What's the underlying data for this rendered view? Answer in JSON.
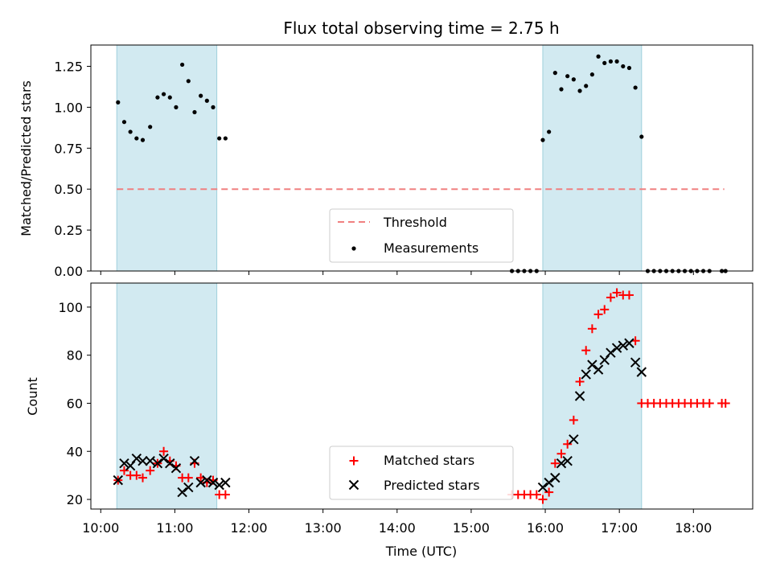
{
  "colors": {
    "shade": "#add8e6",
    "shade_edge": "#9fd0dc",
    "threshold": "#f08080",
    "matched": "#ff0000",
    "predicted": "#000000",
    "measurement": "#000000"
  },
  "chart_data": [
    {
      "type": "scatter",
      "title": "Flux total observing time = 2.75 h",
      "xlabel": "",
      "ylabel": "Matched/Predicted stars",
      "xlim": [
        "09:52",
        "18:48"
      ],
      "ylim": [
        0,
        1.38
      ],
      "yticks": [
        "0.00",
        "0.25",
        "0.50",
        "0.75",
        "1.00",
        "1.25"
      ],
      "shaded_intervals": [
        [
          "10:13",
          "11:34"
        ],
        [
          "15:58",
          "17:18"
        ]
      ],
      "threshold": {
        "name": "Threshold",
        "value": 0.5,
        "x_range": [
          "10:13",
          "18:25"
        ]
      },
      "legend": {
        "location": "lower center",
        "entries": [
          "Threshold",
          "Measurements"
        ]
      },
      "series": [
        {
          "name": "Measurements",
          "x": [
            "10:14",
            "10:19",
            "10:24",
            "10:29",
            "10:34",
            "10:40",
            "10:46",
            "10:51",
            "10:56",
            "11:01",
            "11:06",
            "11:11",
            "11:16",
            "11:21",
            "11:26",
            "11:31",
            "11:36",
            "11:41",
            "15:33",
            "15:38",
            "15:43",
            "15:48",
            "15:53",
            "15:58",
            "16:03",
            "16:08",
            "16:13",
            "16:18",
            "16:23",
            "16:28",
            "16:33",
            "16:38",
            "16:43",
            "16:48",
            "16:53",
            "16:58",
            "17:03",
            "17:08",
            "17:13",
            "17:18",
            "17:23",
            "17:28",
            "17:33",
            "17:38",
            "17:43",
            "17:48",
            "17:53",
            "17:58",
            "18:03",
            "18:08",
            "18:13",
            "18:23",
            "18:26"
          ],
          "y": [
            1.03,
            0.91,
            0.85,
            0.81,
            0.8,
            0.88,
            1.06,
            1.08,
            1.06,
            1.0,
            1.26,
            1.16,
            0.97,
            1.07,
            1.04,
            1.0,
            0.81,
            0.81,
            0.0,
            0.0,
            0.0,
            0.0,
            0.0,
            0.8,
            0.85,
            1.21,
            1.11,
            1.19,
            1.17,
            1.1,
            1.13,
            1.2,
            1.31,
            1.27,
            1.28,
            1.28,
            1.25,
            1.24,
            1.12,
            0.82,
            0.0,
            0.0,
            0.0,
            0.0,
            0.0,
            0.0,
            0.0,
            0.0,
            0.0,
            0.0,
            0.0,
            0.0,
            0.0
          ]
        }
      ]
    },
    {
      "type": "scatter",
      "title": "",
      "xlabel": "Time (UTC)",
      "ylabel": "Count",
      "xlim": [
        "09:52",
        "18:48"
      ],
      "ylim": [
        16,
        110
      ],
      "yticks": [
        "20",
        "40",
        "60",
        "80",
        "100"
      ],
      "xticks": [
        "10:00",
        "11:00",
        "12:00",
        "13:00",
        "14:00",
        "15:00",
        "16:00",
        "17:00",
        "18:00"
      ],
      "shaded_intervals": [
        [
          "10:13",
          "11:34"
        ],
        [
          "15:58",
          "17:18"
        ]
      ],
      "legend": {
        "location": "lower center",
        "entries": [
          "Matched stars",
          "Predicted stars"
        ]
      },
      "series": [
        {
          "name": "Matched stars",
          "marker": "+",
          "x": [
            "10:14",
            "10:19",
            "10:24",
            "10:29",
            "10:34",
            "10:40",
            "10:46",
            "10:51",
            "10:56",
            "11:01",
            "11:06",
            "11:11",
            "11:16",
            "11:21",
            "11:26",
            "11:31",
            "11:36",
            "11:41",
            "15:33",
            "15:38",
            "15:43",
            "15:48",
            "15:53",
            "15:58",
            "16:03",
            "16:08",
            "16:13",
            "16:18",
            "16:23",
            "16:28",
            "16:33",
            "16:38",
            "16:43",
            "16:48",
            "16:53",
            "16:58",
            "17:03",
            "17:08",
            "17:13",
            "17:18",
            "17:23",
            "17:28",
            "17:33",
            "17:38",
            "17:43",
            "17:48",
            "17:53",
            "17:58",
            "18:03",
            "18:08",
            "18:13",
            "18:23",
            "18:26"
          ],
          "y": [
            28,
            32,
            30,
            30,
            29,
            32,
            35,
            40,
            36,
            34,
            29,
            29,
            35,
            29,
            27,
            28,
            22,
            22,
            22,
            22,
            22,
            22,
            22,
            20,
            23,
            35,
            39,
            43,
            53,
            69,
            82,
            91,
            97,
            99,
            104,
            106,
            105,
            105,
            86,
            60,
            60,
            60,
            60,
            60,
            60,
            60,
            60,
            60,
            60,
            60,
            60,
            60,
            60
          ]
        },
        {
          "name": "Predicted stars",
          "marker": "x",
          "x": [
            "10:14",
            "10:19",
            "10:24",
            "10:29",
            "10:34",
            "10:40",
            "10:46",
            "10:51",
            "10:56",
            "11:01",
            "11:06",
            "11:11",
            "11:16",
            "11:21",
            "11:26",
            "11:31",
            "11:36",
            "11:41",
            "15:58",
            "16:03",
            "16:08",
            "16:13",
            "16:18",
            "16:23",
            "16:28",
            "16:33",
            "16:38",
            "16:43",
            "16:48",
            "16:53",
            "16:58",
            "17:03",
            "17:08",
            "17:13",
            "17:18"
          ],
          "y": [
            28,
            35,
            34,
            37,
            36,
            36,
            35,
            37,
            35,
            33,
            23,
            25,
            36,
            27,
            28,
            27,
            26,
            27,
            25,
            27,
            29,
            35,
            36,
            45,
            63,
            72,
            76,
            74,
            78,
            81,
            83,
            84,
            85,
            77,
            73
          ]
        }
      ]
    }
  ]
}
